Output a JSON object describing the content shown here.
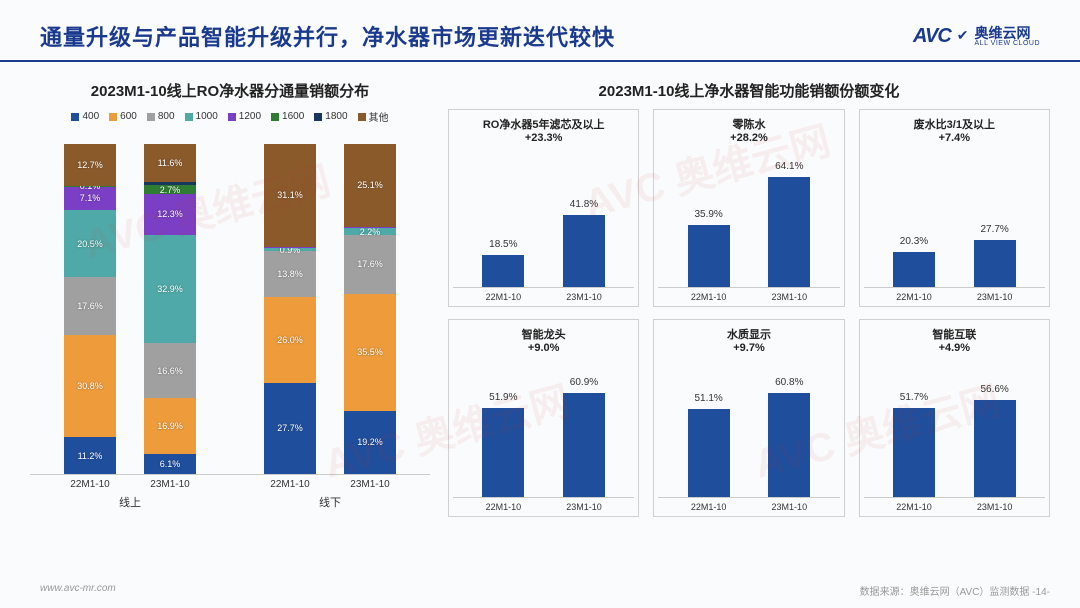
{
  "page": {
    "title": "通量升级与产品智能升级并行，净水器市场更新迭代较快",
    "logo_text_cn": "奥维云网",
    "logo_text_en": "ALL VIEW CLOUD",
    "logo_mark": "AVC",
    "footer_left": "www.avc-mr.com",
    "footer_right": "数据来源：奥维云网（AVC）监测数据  -14-"
  },
  "colors": {
    "c400": "#1f4e9c",
    "c600": "#ed9b3b",
    "c800": "#a0a0a0",
    "c1000": "#4fa9a8",
    "c1200": "#7a3fc4",
    "c1600": "#2e7d32",
    "c1800": "#18375f",
    "cother": "#8a5a2b",
    "bar_blue": "#1f4e9c"
  },
  "stacked": {
    "title": "2023M1-10线上RO净水器分通量销额分布",
    "legend_order": [
      "400",
      "600",
      "800",
      "1000",
      "1200",
      "1600",
      "1800",
      "其他"
    ],
    "legend_colors": [
      "c400",
      "c600",
      "c800",
      "c1000",
      "c1200",
      "c1600",
      "c1800",
      "cother"
    ],
    "groups": [
      {
        "name": "线上",
        "columns": [
          {
            "xlabel": "22M1-10",
            "segments": [
              {
                "key": "c400",
                "pct": 11.2,
                "label": "11.2%"
              },
              {
                "key": "c600",
                "pct": 30.8,
                "label": "30.8%"
              },
              {
                "key": "c800",
                "pct": 17.6,
                "label": "17.6%"
              },
              {
                "key": "c1000",
                "pct": 20.5,
                "label": "20.5%"
              },
              {
                "key": "c1200",
                "pct": 7.1,
                "label": "7.1%"
              },
              {
                "key": "c1600",
                "pct": 0.1,
                "label": "0.1%"
              },
              {
                "key": "cother",
                "pct": 12.7,
                "label": "12.7%"
              }
            ]
          },
          {
            "xlabel": "23M1-10",
            "segments": [
              {
                "key": "c400",
                "pct": 6.1,
                "label": "6.1%"
              },
              {
                "key": "c600",
                "pct": 16.9,
                "label": "16.9%"
              },
              {
                "key": "c800",
                "pct": 16.6,
                "label": "16.6%"
              },
              {
                "key": "c1000",
                "pct": 32.9,
                "label": "32.9%"
              },
              {
                "key": "c1200",
                "pct": 12.3,
                "label": "12.3%"
              },
              {
                "key": "c1600",
                "pct": 2.7,
                "label": "2.7%"
              },
              {
                "key": "c1800",
                "pct": 0.9,
                "label": ""
              },
              {
                "key": "cother",
                "pct": 11.6,
                "label": "11.6%"
              }
            ]
          }
        ]
      },
      {
        "name": "线下",
        "columns": [
          {
            "xlabel": "22M1-10",
            "segments": [
              {
                "key": "c400",
                "pct": 27.7,
                "label": "27.7%"
              },
              {
                "key": "c600",
                "pct": 26.0,
                "label": "26.0%"
              },
              {
                "key": "c800",
                "pct": 13.8,
                "label": "13.8%"
              },
              {
                "key": "c1000",
                "pct": 0.9,
                "label": "0.9%"
              },
              {
                "key": "c1200",
                "pct": 0.5,
                "label": ""
              },
              {
                "key": "cother",
                "pct": 31.1,
                "label": "31.1%"
              }
            ]
          },
          {
            "xlabel": "23M1-10",
            "segments": [
              {
                "key": "c400",
                "pct": 19.2,
                "label": "19.2%"
              },
              {
                "key": "c600",
                "pct": 35.5,
                "label": "35.5%"
              },
              {
                "key": "c800",
                "pct": 17.6,
                "label": "17.6%"
              },
              {
                "key": "c1000",
                "pct": 2.2,
                "label": "2.2%"
              },
              {
                "key": "c1200",
                "pct": 0.4,
                "label": ""
              },
              {
                "key": "cother",
                "pct": 25.1,
                "label": "25.1%"
              }
            ]
          }
        ]
      }
    ]
  },
  "minis": {
    "title": "2023M1-10线上净水器智能功能销额份额变化",
    "ymax": 70,
    "charts": [
      {
        "title": "RO净水器5年滤芯及以上",
        "sub": "+23.3%",
        "x": [
          "22M1-10",
          "23M1-10"
        ],
        "vals": [
          18.5,
          41.8
        ]
      },
      {
        "title": "零陈水",
        "sub": "+28.2%",
        "x": [
          "22M1-10",
          "23M1-10"
        ],
        "vals": [
          35.9,
          64.1
        ]
      },
      {
        "title": "废水比3/1及以上",
        "sub": "+7.4%",
        "x": [
          "22M1-10",
          "23M1-10"
        ],
        "vals": [
          20.3,
          27.7
        ]
      },
      {
        "title": "智能龙头",
        "sub": "+9.0%",
        "x": [
          "22M1-10",
          "23M1-10"
        ],
        "vals": [
          51.9,
          60.9
        ]
      },
      {
        "title": "水质显示",
        "sub": "+9.7%",
        "x": [
          "22M1-10",
          "23M1-10"
        ],
        "vals": [
          51.1,
          60.8
        ]
      },
      {
        "title": "智能互联",
        "sub": "+4.9%",
        "x": [
          "22M1-10",
          "23M1-10"
        ],
        "vals": [
          51.7,
          56.6
        ]
      }
    ]
  }
}
